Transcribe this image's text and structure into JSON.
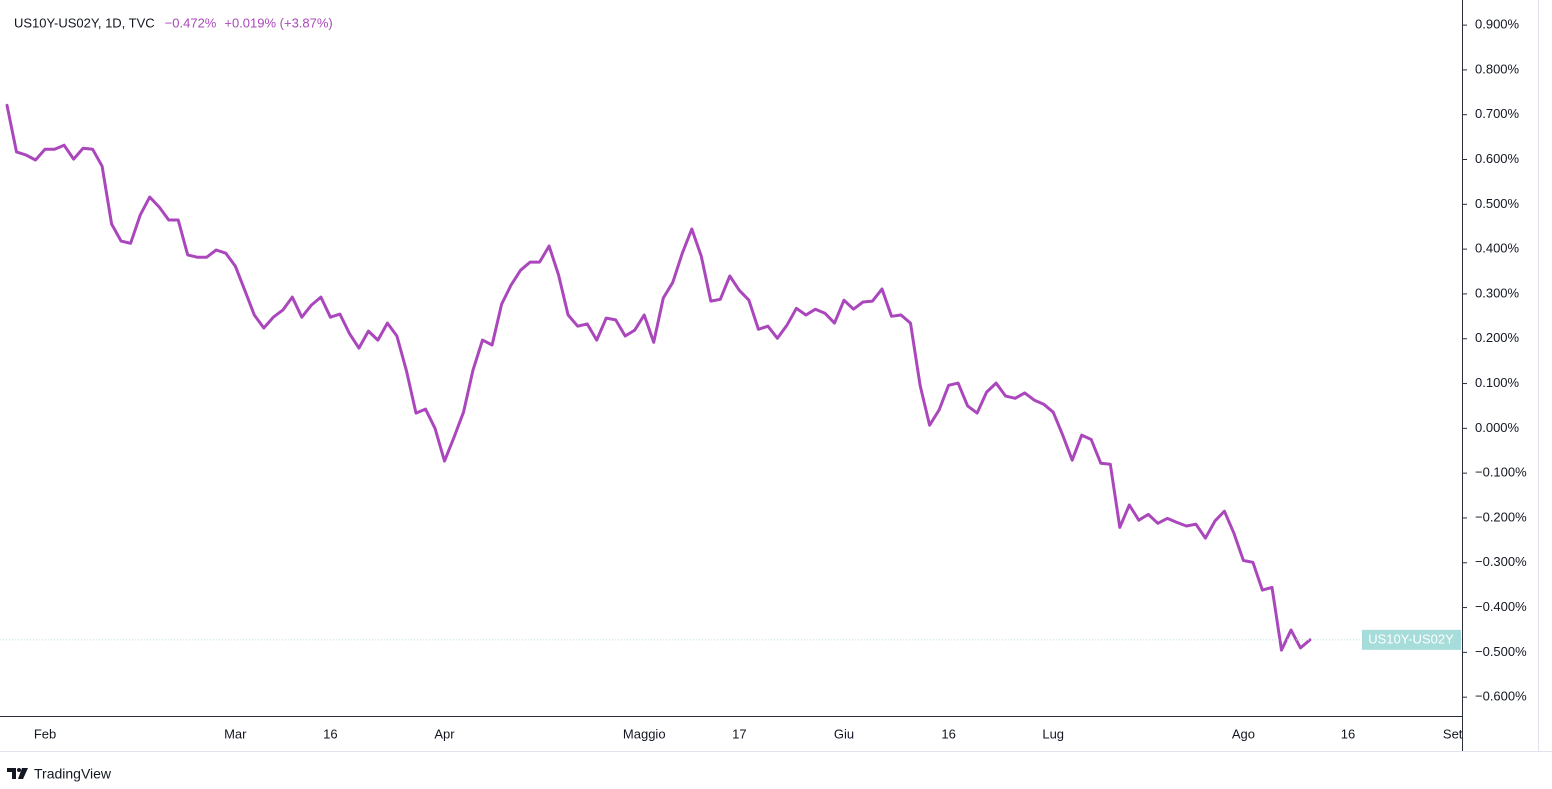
{
  "chart_data": {
    "type": "line",
    "title": "US10Y-US02Y, 1D, TVC",
    "legend_values": [
      "−0.472%",
      "+0.019% (+3.87%)"
    ],
    "price_label": "US10Y-US02Y",
    "color": "#ab47bc",
    "grid": false,
    "categories": [
      null,
      null,
      null,
      null,
      "Feb",
      null,
      null,
      null,
      null,
      null,
      null,
      null,
      null,
      null,
      null,
      null,
      null,
      null,
      null,
      null,
      null,
      null,
      null,
      null,
      "Mar",
      null,
      null,
      null,
      null,
      null,
      null,
      null,
      null,
      null,
      "16",
      null,
      null,
      null,
      null,
      null,
      null,
      null,
      null,
      null,
      null,
      null,
      "Apr",
      null,
      null,
      null,
      null,
      null,
      null,
      null,
      null,
      null,
      null,
      null,
      null,
      null,
      null,
      null,
      null,
      null,
      null,
      null,
      null,
      "Maggio",
      null,
      null,
      null,
      null,
      null,
      null,
      null,
      null,
      null,
      "17",
      null,
      null,
      null,
      null,
      null,
      null,
      null,
      null,
      null,
      null,
      "Giu",
      null,
      null,
      null,
      null,
      null,
      null,
      null,
      null,
      null,
      null,
      "16",
      null,
      null,
      null,
      null,
      null,
      null,
      null,
      null,
      null,
      null,
      "Lug",
      null,
      null,
      null,
      null,
      null,
      null,
      null,
      null,
      null,
      null,
      null,
      null,
      null,
      null,
      null,
      null,
      null,
      null,
      null,
      "Ago",
      null,
      null,
      null,
      null,
      null,
      null,
      null,
      null,
      null,
      null,
      "16",
      null,
      null,
      null,
      null,
      null,
      null,
      null,
      null,
      null,
      null,
      "Set"
    ],
    "values": [
      0.721,
      0.617,
      0.61,
      0.599,
      0.623,
      0.623,
      0.632,
      0.601,
      0.625,
      0.623,
      0.585,
      0.456,
      0.418,
      0.413,
      0.476,
      0.516,
      0.494,
      0.465,
      0.465,
      0.387,
      0.382,
      0.382,
      0.398,
      0.391,
      0.362,
      0.308,
      0.253,
      0.224,
      0.248,
      0.264,
      0.293,
      0.248,
      0.275,
      0.293,
      0.248,
      0.255,
      0.212,
      0.179,
      0.217,
      0.197,
      0.235,
      0.206,
      0.128,
      0.034,
      0.043,
      0.0,
      -0.073,
      -0.02,
      0.036,
      0.13,
      0.197,
      0.186,
      0.277,
      0.32,
      0.353,
      0.371,
      0.371,
      0.407,
      0.342,
      0.253,
      0.228,
      0.233,
      0.197,
      0.246,
      0.242,
      0.206,
      0.219,
      0.253,
      0.192,
      0.291,
      0.326,
      0.391,
      0.445,
      0.384,
      0.284,
      0.288,
      0.34,
      0.308,
      0.286,
      0.221,
      0.228,
      0.201,
      0.23,
      0.268,
      0.253,
      0.266,
      0.257,
      0.235,
      0.286,
      0.266,
      0.282,
      0.284,
      0.311,
      0.25,
      0.253,
      0.235,
      0.096,
      0.007,
      0.041,
      0.096,
      0.101,
      0.05,
      0.034,
      0.081,
      0.101,
      0.072,
      0.067,
      0.079,
      0.063,
      0.054,
      0.036,
      -0.015,
      -0.071,
      -0.015,
      -0.025,
      -0.078,
      -0.08,
      -0.221,
      -0.171,
      -0.205,
      -0.192,
      -0.212,
      -0.201,
      -0.21,
      -0.218,
      -0.214,
      -0.245,
      -0.207,
      -0.185,
      -0.234,
      -0.295,
      -0.299,
      -0.361,
      -0.355,
      -0.495,
      -0.45,
      -0.49,
      -0.472,
      null,
      null,
      null,
      null,
      null,
      null,
      null,
      null,
      null,
      null,
      null,
      null,
      null,
      null,
      null
    ],
    "ylim": [
      -0.642,
      0.956
    ],
    "yticks": [
      {
        "value": 0.9,
        "label": "0.900%"
      },
      {
        "value": 0.8,
        "label": "0.800%"
      },
      {
        "value": 0.7,
        "label": "0.700%"
      },
      {
        "value": 0.6,
        "label": "0.600%"
      },
      {
        "value": 0.5,
        "label": "0.500%"
      },
      {
        "value": 0.4,
        "label": "0.400%"
      },
      {
        "value": 0.3,
        "label": "0.300%"
      },
      {
        "value": 0.2,
        "label": "0.200%"
      },
      {
        "value": 0.1,
        "label": "0.100%"
      },
      {
        "value": 0.0,
        "label": "0.000%"
      },
      {
        "value": -0.1,
        "label": "−0.100%"
      },
      {
        "value": -0.2,
        "label": "−0.200%"
      },
      {
        "value": -0.3,
        "label": "−0.300%"
      },
      {
        "value": -0.4,
        "label": "−0.400%"
      },
      {
        "value": -0.5,
        "label": "−0.500%"
      },
      {
        "value": -0.6,
        "label": "−0.600%"
      }
    ]
  },
  "footer": {
    "brand": "TradingView"
  }
}
